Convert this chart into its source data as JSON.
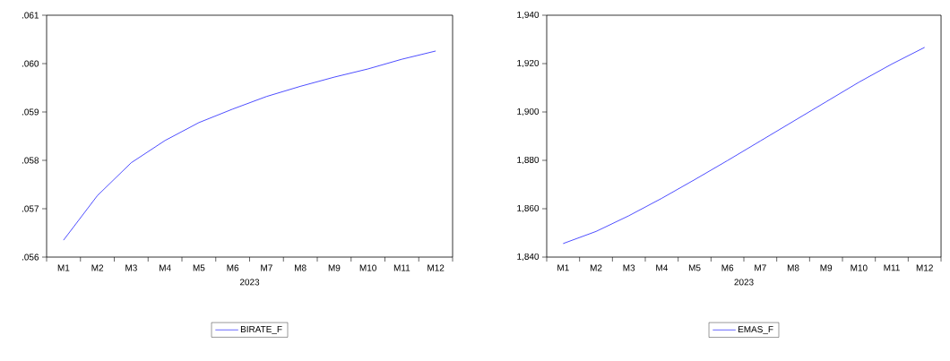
{
  "chart_data": [
    {
      "type": "line",
      "xlabel": "2023",
      "categories": [
        "M1",
        "M2",
        "M3",
        "M4",
        "M5",
        "M6",
        "M7",
        "M8",
        "M9",
        "M10",
        "M11",
        "M12"
      ],
      "series": [
        {
          "name": "BIRATE_F",
          "color": "#0000ff",
          "values": [
            0.05635,
            0.05727,
            0.05795,
            0.05841,
            0.05878,
            0.05906,
            0.05932,
            0.05953,
            0.05972,
            0.05989,
            0.06009,
            0.06026
          ]
        }
      ],
      "ylim": [
        0.056,
        0.061
      ],
      "yticks": [
        {
          "value": 0.056,
          "label": ".056"
        },
        {
          "value": 0.057,
          "label": ".057"
        },
        {
          "value": 0.058,
          "label": ".058"
        },
        {
          "value": 0.059,
          "label": ".059"
        },
        {
          "value": 0.06,
          "label": ".060"
        },
        {
          "value": 0.061,
          "label": ".061"
        }
      ],
      "legend": "bottom",
      "grid": false,
      "marker": "none",
      "line_style": "solid"
    },
    {
      "type": "line",
      "xlabel": "2023",
      "categories": [
        "M1",
        "M2",
        "M3",
        "M4",
        "M5",
        "M6",
        "M7",
        "M8",
        "M9",
        "M10",
        "M11",
        "M12"
      ],
      "series": [
        {
          "name": "EMAS_F",
          "color": "#0000ff",
          "values": [
            1845.6,
            1850.6,
            1857.1,
            1864.3,
            1872.0,
            1879.9,
            1888.0,
            1896.1,
            1904.2,
            1912.3,
            1919.8,
            1926.7
          ]
        }
      ],
      "ylim": [
        1840,
        1940
      ],
      "yticks": [
        {
          "value": 1840,
          "label": "1,840"
        },
        {
          "value": 1860,
          "label": "1,860"
        },
        {
          "value": 1880,
          "label": "1,880"
        },
        {
          "value": 1900,
          "label": "1,900"
        },
        {
          "value": 1920,
          "label": "1,920"
        },
        {
          "value": 1940,
          "label": "1,940"
        }
      ],
      "legend": "bottom",
      "grid": false,
      "marker": "none",
      "line_style": "solid"
    }
  ]
}
